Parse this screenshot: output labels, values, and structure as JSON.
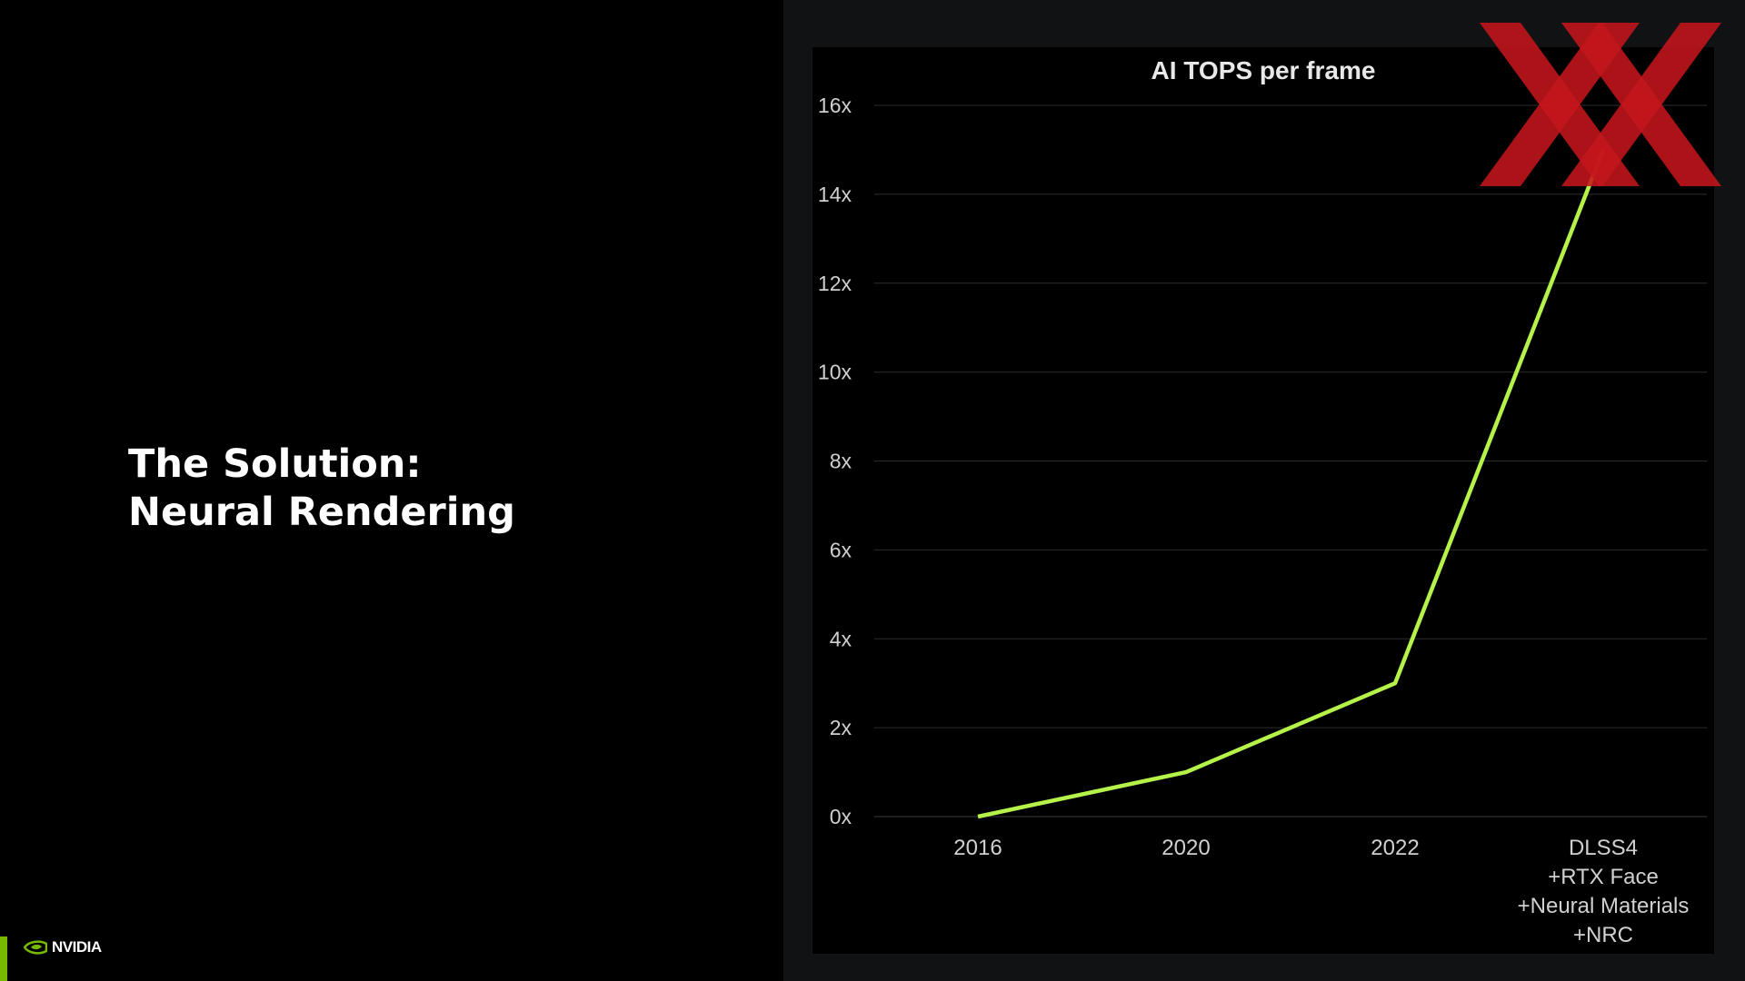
{
  "slide": {
    "title_line1": "The Solution:",
    "title_line2": "Neural Rendering"
  },
  "brand": {
    "logo_text": "NVIDIA",
    "accent_color": "#76b900",
    "watermark_icon": "xx-logo-icon",
    "watermark_color": "#c4161c"
  },
  "chart_data": {
    "type": "line",
    "title": "AI TOPS per frame",
    "categories": [
      "2016",
      "2020",
      "2022",
      [
        "DLSS4",
        "+RTX Face",
        "+Neural Materials",
        "+NRC"
      ]
    ],
    "series": [
      {
        "values": [
          0,
          1,
          3,
          15
        ],
        "color": "#b5f24a"
      }
    ],
    "ylim": [
      0,
      16
    ],
    "yticks": [
      "0x",
      "2x",
      "4x",
      "6x",
      "8x",
      "10x",
      "12x",
      "14x",
      "16x"
    ],
    "xlabel": "",
    "ylabel": "",
    "grid": true,
    "legend": "none"
  }
}
